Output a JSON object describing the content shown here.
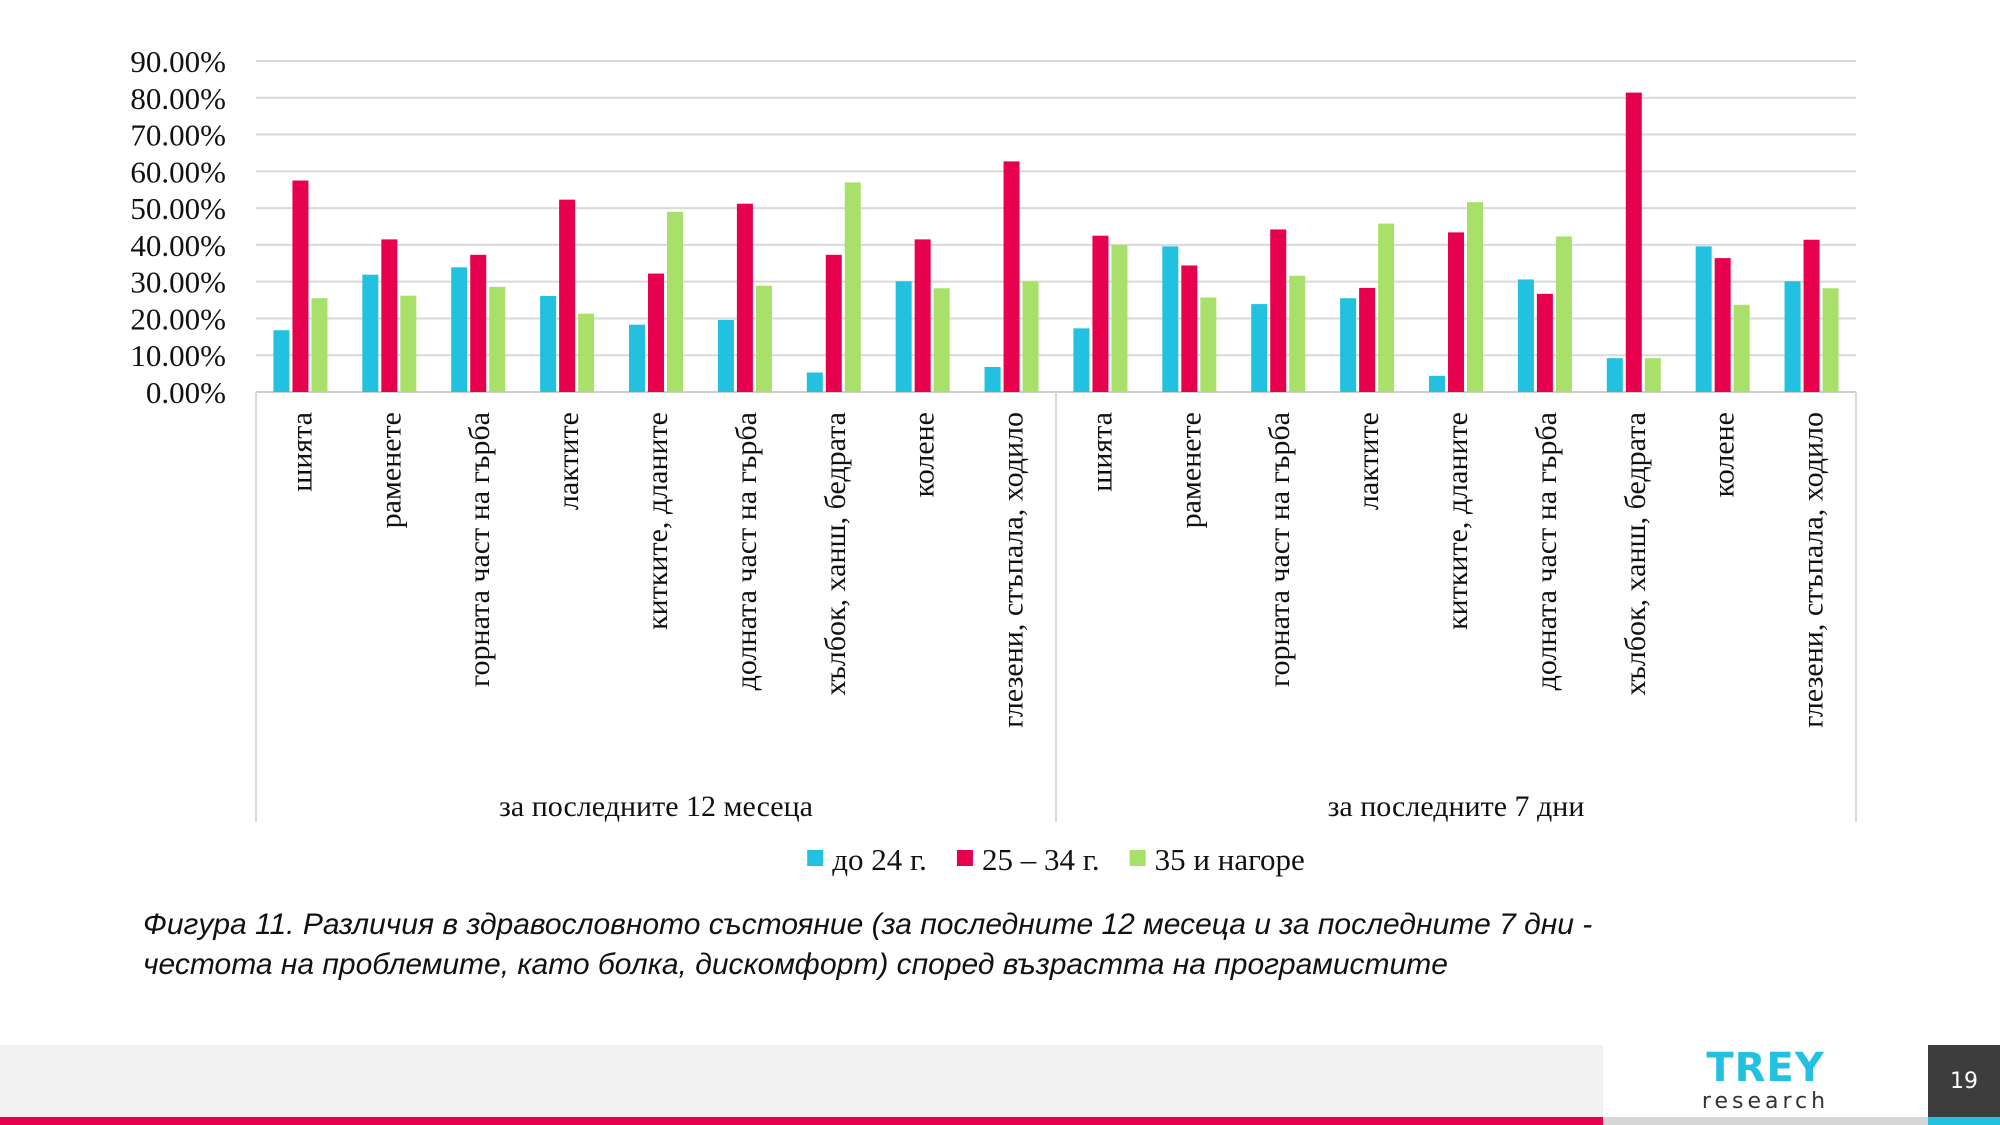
{
  "chart_data": {
    "type": "bar",
    "title": "",
    "xlabel": "",
    "ylabel": "",
    "ylim": [
      0,
      90
    ],
    "y_ticks": [
      "0.00%",
      "10.00%",
      "20.00%",
      "30.00%",
      "40.00%",
      "50.00%",
      "60.00%",
      "70.00%",
      "80.00%",
      "90.00%"
    ],
    "grid": true,
    "legend_position": "bottom",
    "groups": [
      {
        "label": "за последните 12 месеца",
        "categories": [
          "шията",
          "раменете",
          "горната част на гърба",
          "лактите",
          "китките, дланите",
          "долната част на гърба",
          "хълбок, ханш, бедрата",
          "колене",
          "глезени, стъпала, ходило"
        ]
      },
      {
        "label": "за последните 7 дни",
        "categories": [
          "шията",
          "раменете",
          "горната част на гърба",
          "лактите",
          "китките, дланите",
          "долната част на гърба",
          "хълбок, ханш, бедрата",
          "колене",
          "глезени, стъпала, ходило"
        ]
      }
    ],
    "series": [
      {
        "name": "до 24 г.",
        "color": "#22c1df",
        "values": [
          16.8,
          31.9,
          33.9,
          26.1,
          18.3,
          19.6,
          5.3,
          30.1,
          6.8,
          17.3,
          39.6,
          23.9,
          25.5,
          4.4,
          30.6,
          9.2,
          39.6,
          30.1
        ]
      },
      {
        "name": "25 – 34 г.",
        "color": "#e6004e",
        "values": [
          57.5,
          41.5,
          37.3,
          52.3,
          32.2,
          51.2,
          37.3,
          41.5,
          62.7,
          42.5,
          34.4,
          44.2,
          28.3,
          43.4,
          26.7,
          81.4,
          36.4,
          41.4
        ]
      },
      {
        "name": "35 и нагоре",
        "color": "#a8e06a",
        "values": [
          25.5,
          26.2,
          28.6,
          21.3,
          49.0,
          28.9,
          57.0,
          28.2,
          30.1,
          40.0,
          25.7,
          31.6,
          45.8,
          51.6,
          42.3,
          9.2,
          23.7,
          28.2
        ]
      }
    ]
  },
  "caption": {
    "line1": "Фигура 11. Различия в здравословното състояние (за последните 12 месеца и за последните 7 дни -",
    "line2": "честота на проблемите, като болка, дискомфорт) според възрастта на програмистите"
  },
  "footer": {
    "logo_top": "TREY",
    "logo_bottom": "research",
    "page_number": "19"
  }
}
